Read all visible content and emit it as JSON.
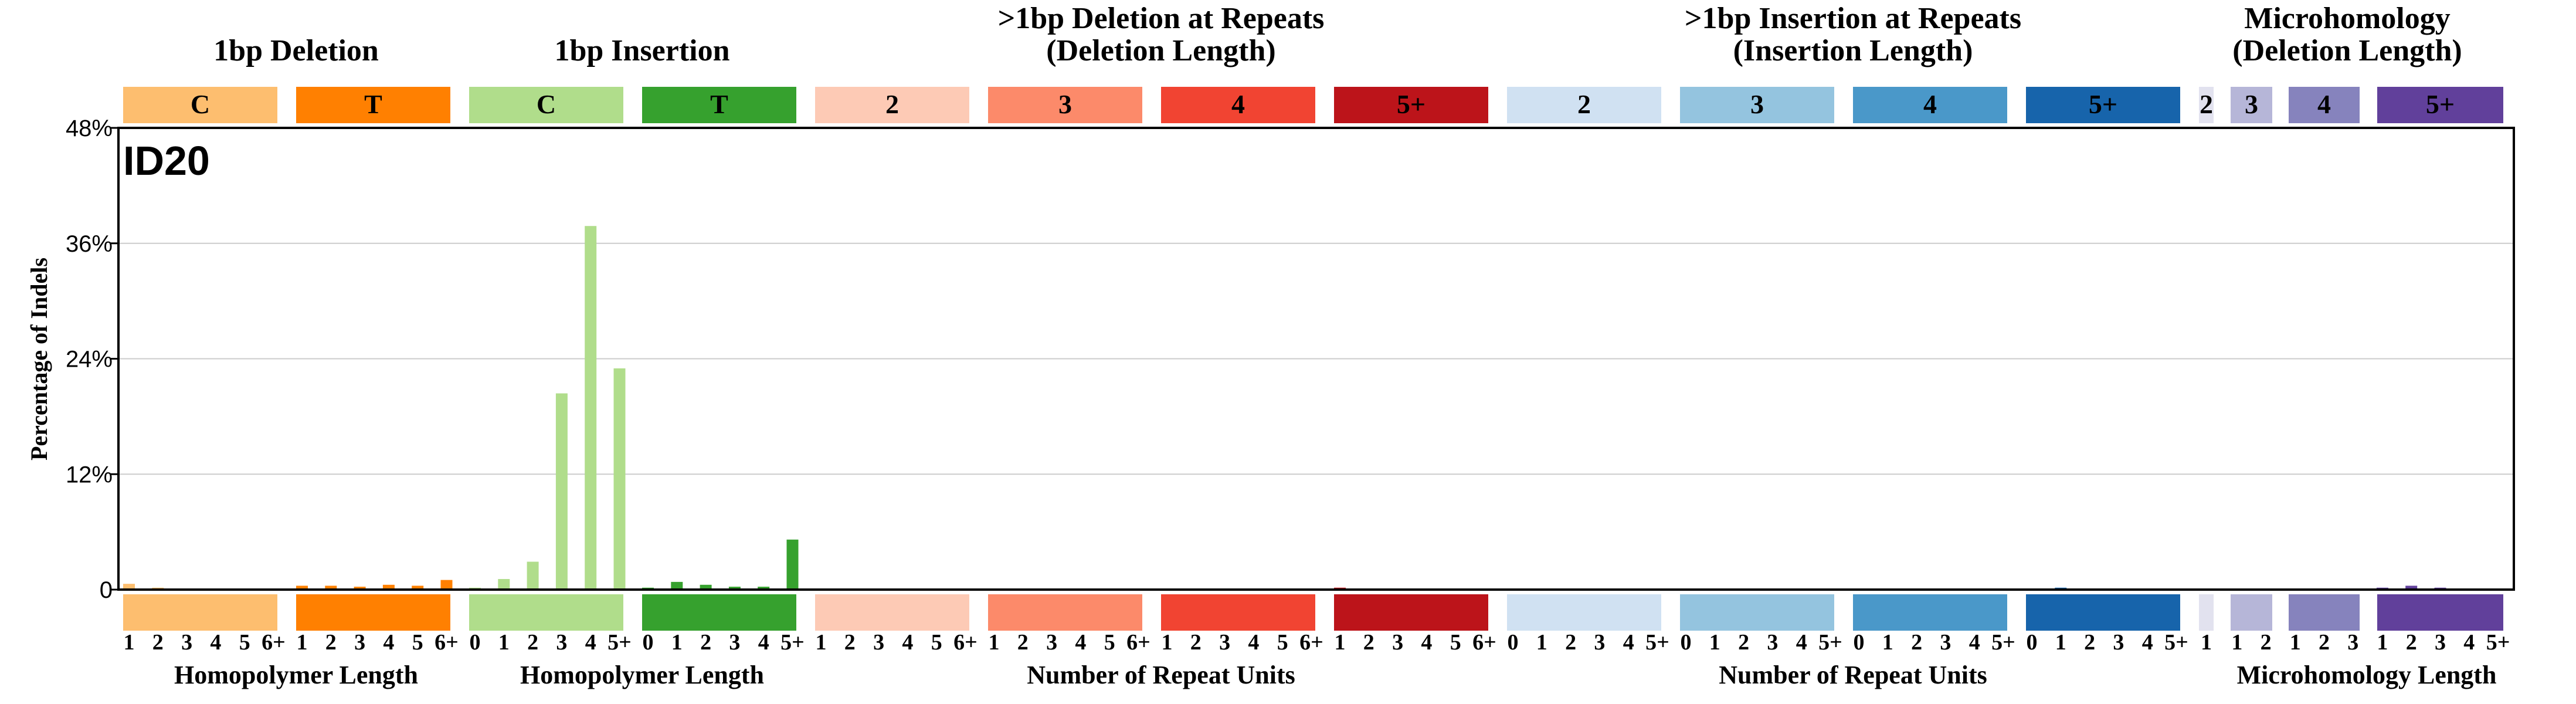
{
  "chart_data": {
    "type": "bar",
    "title": "ID20",
    "ylabel": "Percentage of Indels",
    "ylim": [
      0,
      48
    ],
    "yticks": [
      "0",
      "12%",
      "24%",
      "36%",
      "48%"
    ],
    "ytick_values": [
      0,
      12,
      24,
      36,
      48
    ],
    "grid": true,
    "groups": [
      {
        "title": "1bp Deletion",
        "tick_labels": [
          "1",
          "2",
          "3",
          "4",
          "5",
          "6+"
        ],
        "blocks": [
          {
            "label": "C",
            "color": "#FDBE6F",
            "text_color": "#000000",
            "values": [
              0.6,
              0.2,
              0.1,
              0.1,
              0.1,
              0.1
            ]
          },
          {
            "label": "T",
            "color": "#FF8001",
            "text_color": "#FFFFFF",
            "values": [
              0.4,
              0.4,
              0.3,
              0.5,
              0.4,
              1.0
            ]
          }
        ]
      },
      {
        "title": "1bp Insertion",
        "tick_labels": [
          "0",
          "1",
          "2",
          "3",
          "4",
          "5+"
        ],
        "blocks": [
          {
            "label": "C",
            "color": "#B0DD8B",
            "text_color": "#000000",
            "values": [
              0.2,
              1.1,
              2.9,
              20.4,
              37.8,
              23.0
            ]
          },
          {
            "label": "T",
            "color": "#36A12E",
            "text_color": "#FFFFFF",
            "values": [
              0.2,
              0.8,
              0.5,
              0.3,
              0.3,
              5.2
            ]
          }
        ]
      },
      {
        "title": ">1bp Deletion at Repeats",
        "subtitle": "(Deletion Length)",
        "tick_labels": [
          "1",
          "2",
          "3",
          "4",
          "5",
          "6+"
        ],
        "blocks": [
          {
            "label": "2",
            "color": "#FDCAB5",
            "text_color": "#000000",
            "values": [
              0.1,
              0.1,
              0.1,
              0.0,
              0.0,
              0.0
            ]
          },
          {
            "label": "3",
            "color": "#FC8A6A",
            "text_color": "#000000",
            "values": [
              0.1,
              0.0,
              0.0,
              0.0,
              0.0,
              0.0
            ]
          },
          {
            "label": "4",
            "color": "#F14432",
            "text_color": "#000000",
            "values": [
              0.0,
              0.0,
              0.0,
              0.0,
              0.0,
              0.0
            ]
          },
          {
            "label": "5+",
            "color": "#BC141A",
            "text_color": "#FFFFFF",
            "values": [
              0.2,
              0.0,
              0.0,
              0.0,
              0.0,
              0.0
            ]
          }
        ]
      },
      {
        "title": ">1bp Insertion at Repeats",
        "subtitle": "(Insertion Length)",
        "tick_labels": [
          "0",
          "1",
          "2",
          "3",
          "4",
          "5+"
        ],
        "blocks": [
          {
            "label": "2",
            "color": "#D0E1F2",
            "text_color": "#000000",
            "values": [
              0.1,
              0.1,
              0.1,
              0.1,
              0.0,
              0.0
            ]
          },
          {
            "label": "3",
            "color": "#94C4DF",
            "text_color": "#000000",
            "values": [
              0.0,
              0.0,
              0.0,
              0.0,
              0.0,
              0.0
            ]
          },
          {
            "label": "4",
            "color": "#4A98C9",
            "text_color": "#000000",
            "values": [
              0.0,
              0.0,
              0.0,
              0.0,
              0.0,
              0.0
            ]
          },
          {
            "label": "5+",
            "color": "#1764AB",
            "text_color": "#FFFFFF",
            "values": [
              0.0,
              0.2,
              0.0,
              0.0,
              0.0,
              0.0
            ]
          }
        ]
      },
      {
        "title": "Microhomology",
        "subtitle": "(Deletion Length)",
        "tick_labels": [],
        "blocks": [
          {
            "label": "2",
            "color": "#E2E2EF",
            "text_color": "#000000",
            "ticks": [
              "1"
            ],
            "values": [
              0.0
            ]
          },
          {
            "label": "3",
            "color": "#B6B6D8",
            "text_color": "#000000",
            "ticks": [
              "1",
              "2"
            ],
            "values": [
              0.0,
              0.1
            ]
          },
          {
            "label": "4",
            "color": "#8683BD",
            "text_color": "#000000",
            "ticks": [
              "1",
              "2",
              "3"
            ],
            "values": [
              0.0,
              0.0,
              0.0
            ]
          },
          {
            "label": "5+",
            "color": "#61409B",
            "text_color": "#FFFFFF",
            "ticks": [
              "1",
              "2",
              "3",
              "4",
              "5+"
            ],
            "values": [
              0.2,
              0.4,
              0.2,
              0.1,
              0.1
            ]
          }
        ]
      }
    ],
    "xlabels": [
      {
        "text": "Homopolymer Length",
        "group": 0
      },
      {
        "text": "Homopolymer Length",
        "group": 1
      },
      {
        "text": "Number of Repeat Units",
        "group": 2
      },
      {
        "text": "Number of Repeat Units",
        "group": 3
      },
      {
        "text": "Microhomology Length",
        "group": 4
      }
    ]
  }
}
